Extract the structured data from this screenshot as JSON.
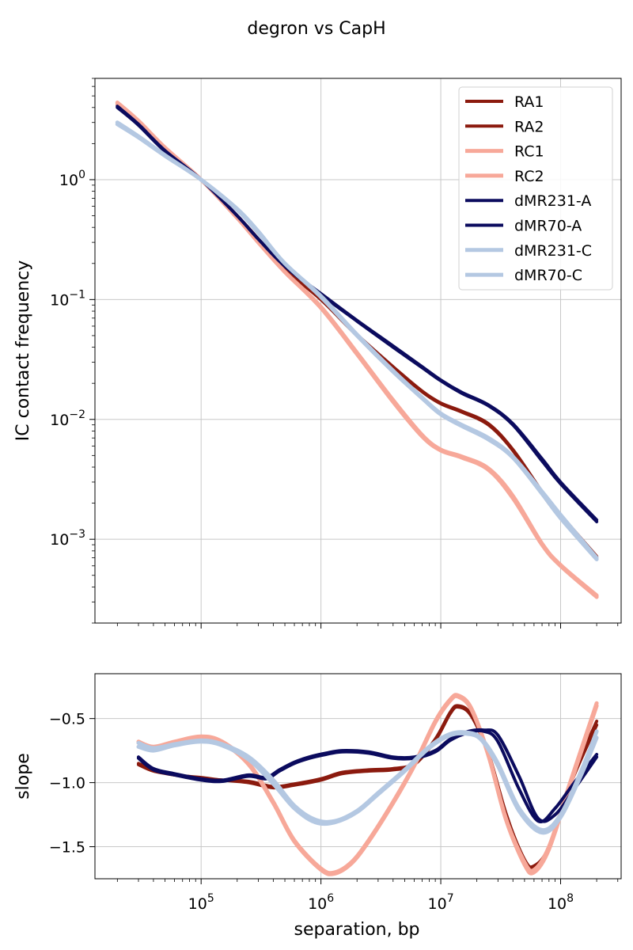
{
  "title": "degron vs CapH",
  "colors": {
    "RA": "#8b1a0e",
    "RC": "#f7a899",
    "dMR_A": "#0b0b5e",
    "dMR_C": "#b4c8e2"
  },
  "chart_data": [
    {
      "type": "line",
      "panel": "top",
      "title": "degron vs CapH",
      "xlabel": "",
      "ylabel": "IC contact frequency",
      "xscale": "log",
      "yscale": "log",
      "xlim": [
        13000,
        320000000
      ],
      "ylim": [
        0.0002,
        7
      ],
      "grid": true,
      "legend_position": "top-right",
      "y_ticks": [
        {
          "value": 1,
          "base": "10",
          "exp": "0"
        },
        {
          "value": 0.1,
          "base": "10",
          "exp": "−1"
        },
        {
          "value": 0.01,
          "base": "10",
          "exp": "−2"
        },
        {
          "value": 0.001,
          "base": "10",
          "exp": "−3"
        }
      ],
      "legend": [
        "RA1",
        "RA2",
        "RC1",
        "RC2",
        "dMR231-A",
        "dMR70-A",
        "dMR231-C",
        "dMR70-C"
      ],
      "series": [
        {
          "name": "RA1",
          "color": "#8b1a0e",
          "x": [
            20000,
            30000,
            50000,
            100000,
            200000,
            300000,
            500000,
            1000000,
            2000000,
            4000000,
            7000000,
            10000000,
            15000000,
            25000000,
            40000000,
            70000000,
            100000000,
            200000000
          ],
          "y": [
            4.3,
            3.0,
            1.8,
            1.0,
            0.5,
            0.32,
            0.18,
            0.1,
            0.05,
            0.027,
            0.017,
            0.0135,
            0.0115,
            0.009,
            0.0055,
            0.0024,
            0.0015,
            0.0007
          ]
        },
        {
          "name": "RA2",
          "color": "#8b1a0e",
          "x": [
            20000,
            30000,
            50000,
            100000,
            200000,
            300000,
            500000,
            1000000,
            2000000,
            4000000,
            7000000,
            10000000,
            15000000,
            25000000,
            40000000,
            70000000,
            100000000,
            200000000
          ],
          "y": [
            4.2,
            2.95,
            1.78,
            1.0,
            0.5,
            0.32,
            0.18,
            0.1,
            0.051,
            0.0275,
            0.0172,
            0.0137,
            0.0117,
            0.0092,
            0.0056,
            0.0025,
            0.0016,
            0.00072
          ]
        },
        {
          "name": "RC1",
          "color": "#f7a899",
          "x": [
            20000,
            30000,
            50000,
            100000,
            200000,
            300000,
            500000,
            1000000,
            2000000,
            4000000,
            7000000,
            10000000,
            15000000,
            25000000,
            40000000,
            70000000,
            100000000,
            200000000
          ],
          "y": [
            4.4,
            3.1,
            1.85,
            1.0,
            0.48,
            0.3,
            0.17,
            0.085,
            0.035,
            0.014,
            0.0072,
            0.0055,
            0.0048,
            0.0038,
            0.0022,
            0.0009,
            0.0006,
            0.00033
          ]
        },
        {
          "name": "RC2",
          "color": "#f7a899",
          "x": [
            20000,
            30000,
            50000,
            100000,
            200000,
            300000,
            500000,
            1000000,
            2000000,
            4000000,
            7000000,
            10000000,
            15000000,
            25000000,
            40000000,
            70000000,
            100000000,
            200000000
          ],
          "y": [
            4.3,
            3.05,
            1.82,
            1.0,
            0.48,
            0.3,
            0.17,
            0.087,
            0.036,
            0.0145,
            0.0074,
            0.0056,
            0.0049,
            0.0039,
            0.0023,
            0.00092,
            0.00061,
            0.00034
          ]
        },
        {
          "name": "dMR231-A",
          "color": "#0b0b5e",
          "x": [
            20000,
            30000,
            50000,
            100000,
            200000,
            300000,
            500000,
            1000000,
            2000000,
            4000000,
            7000000,
            10000000,
            15000000,
            25000000,
            40000000,
            70000000,
            100000000,
            200000000
          ],
          "y": [
            4.1,
            2.9,
            1.75,
            1.0,
            0.5,
            0.32,
            0.19,
            0.11,
            0.066,
            0.04,
            0.027,
            0.021,
            0.0165,
            0.013,
            0.009,
            0.0045,
            0.0029,
            0.0014
          ]
        },
        {
          "name": "dMR70-A",
          "color": "#0b0b5e",
          "x": [
            20000,
            30000,
            50000,
            100000,
            200000,
            300000,
            500000,
            1000000,
            2000000,
            4000000,
            7000000,
            10000000,
            15000000,
            25000000,
            40000000,
            70000000,
            100000000,
            200000000
          ],
          "y": [
            4.0,
            2.85,
            1.72,
            1.0,
            0.5,
            0.32,
            0.19,
            0.112,
            0.067,
            0.041,
            0.0275,
            0.0213,
            0.0168,
            0.0132,
            0.0092,
            0.0047,
            0.003,
            0.00145
          ]
        },
        {
          "name": "dMR231-C",
          "color": "#b4c8e2",
          "x": [
            20000,
            30000,
            50000,
            100000,
            200000,
            300000,
            500000,
            1000000,
            2000000,
            4000000,
            7000000,
            10000000,
            15000000,
            25000000,
            40000000,
            70000000,
            100000000,
            200000000
          ],
          "y": [
            3.0,
            2.3,
            1.6,
            1.0,
            0.56,
            0.36,
            0.2,
            0.105,
            0.05,
            0.025,
            0.015,
            0.011,
            0.0088,
            0.0068,
            0.0048,
            0.0024,
            0.0015,
            0.00068
          ]
        },
        {
          "name": "dMR70-C",
          "color": "#b4c8e2",
          "x": [
            20000,
            30000,
            50000,
            100000,
            200000,
            300000,
            500000,
            1000000,
            2000000,
            4000000,
            7000000,
            10000000,
            15000000,
            25000000,
            40000000,
            70000000,
            100000000,
            200000000
          ],
          "y": [
            2.9,
            2.25,
            1.58,
            1.0,
            0.57,
            0.37,
            0.2,
            0.107,
            0.051,
            0.0255,
            0.0152,
            0.0112,
            0.009,
            0.007,
            0.0049,
            0.0025,
            0.0016,
            0.0007
          ]
        }
      ]
    },
    {
      "type": "line",
      "panel": "bottom",
      "xlabel": "separation, bp",
      "ylabel": "slope",
      "xscale": "log",
      "yscale": "linear",
      "xlim": [
        13000,
        320000000
      ],
      "ylim": [
        -1.75,
        -0.15
      ],
      "grid": true,
      "y_ticks": [
        {
          "value": -0.5,
          "label": "−0.5"
        },
        {
          "value": -1.0,
          "label": "−1.0"
        },
        {
          "value": -1.5,
          "label": "−1.5"
        }
      ],
      "x_ticks": [
        {
          "value": 100000,
          "base": "10",
          "exp": "5"
        },
        {
          "value": 1000000,
          "base": "10",
          "exp": "6"
        },
        {
          "value": 10000000,
          "base": "10",
          "exp": "7"
        },
        {
          "value": 100000000,
          "base": "10",
          "exp": "8"
        }
      ],
      "series": [
        {
          "name": "RA1",
          "color": "#8b1a0e",
          "x": [
            30000,
            40000,
            60000,
            100000,
            150000,
            250000,
            400000,
            600000,
            1000000,
            1500000,
            2500000,
            4000000,
            6000000,
            9000000,
            12000000,
            14000000,
            18000000,
            25000000,
            35000000,
            50000000,
            60000000,
            80000000,
            120000000,
            200000000
          ],
          "y": [
            -0.86,
            -0.91,
            -0.94,
            -0.97,
            -0.98,
            -1.0,
            -1.04,
            -1.02,
            -0.98,
            -0.93,
            -0.91,
            -0.9,
            -0.86,
            -0.67,
            -0.46,
            -0.41,
            -0.48,
            -0.78,
            -1.25,
            -1.6,
            -1.65,
            -1.5,
            -1.0,
            -0.52
          ]
        },
        {
          "name": "RA2",
          "color": "#8b1a0e",
          "x": [
            30000,
            40000,
            60000,
            100000,
            150000,
            250000,
            400000,
            600000,
            1000000,
            1500000,
            2500000,
            4000000,
            6000000,
            9000000,
            12000000,
            14000000,
            18000000,
            25000000,
            35000000,
            50000000,
            60000000,
            80000000,
            120000000,
            200000000
          ],
          "y": [
            -0.85,
            -0.9,
            -0.94,
            -0.96,
            -0.98,
            -0.99,
            -1.03,
            -1.01,
            -0.97,
            -0.92,
            -0.9,
            -0.89,
            -0.85,
            -0.66,
            -0.45,
            -0.4,
            -0.47,
            -0.77,
            -1.24,
            -1.62,
            -1.67,
            -1.52,
            -1.02,
            -0.55
          ]
        },
        {
          "name": "RC1",
          "color": "#f7a899",
          "x": [
            30000,
            40000,
            60000,
            100000,
            150000,
            250000,
            400000,
            600000,
            1000000,
            1300000,
            1800000,
            2500000,
            4000000,
            6000000,
            9000000,
            12000000,
            14000000,
            18000000,
            25000000,
            35000000,
            50000000,
            60000000,
            80000000,
            120000000,
            200000000
          ],
          "y": [
            -0.68,
            -0.72,
            -0.68,
            -0.64,
            -0.68,
            -0.85,
            -1.15,
            -1.45,
            -1.67,
            -1.7,
            -1.62,
            -1.45,
            -1.15,
            -0.86,
            -0.52,
            -0.35,
            -0.32,
            -0.42,
            -0.78,
            -1.28,
            -1.62,
            -1.68,
            -1.5,
            -1.0,
            -0.38
          ]
        },
        {
          "name": "RC2",
          "color": "#f7a899",
          "x": [
            30000,
            40000,
            60000,
            100000,
            150000,
            250000,
            400000,
            600000,
            1000000,
            1300000,
            1800000,
            2500000,
            4000000,
            6000000,
            9000000,
            12000000,
            14000000,
            18000000,
            25000000,
            35000000,
            50000000,
            60000000,
            80000000,
            120000000,
            200000000
          ],
          "y": [
            -0.69,
            -0.73,
            -0.69,
            -0.65,
            -0.69,
            -0.86,
            -1.16,
            -1.46,
            -1.68,
            -1.71,
            -1.63,
            -1.46,
            -1.16,
            -0.87,
            -0.53,
            -0.36,
            -0.33,
            -0.43,
            -0.79,
            -1.29,
            -1.64,
            -1.7,
            -1.52,
            -1.02,
            -0.4
          ]
        },
        {
          "name": "dMR231-A",
          "color": "#0b0b5e",
          "x": [
            30000,
            40000,
            60000,
            100000,
            150000,
            250000,
            350000,
            450000,
            600000,
            800000,
            1100000,
            1500000,
            2500000,
            4000000,
            6000000,
            9000000,
            12000000,
            17000000,
            23000000,
            30000000,
            45000000,
            65000000,
            90000000,
            130000000,
            200000000
          ],
          "y": [
            -0.8,
            -0.89,
            -0.93,
            -0.97,
            -0.98,
            -0.94,
            -0.96,
            -0.9,
            -0.84,
            -0.8,
            -0.77,
            -0.75,
            -0.76,
            -0.8,
            -0.8,
            -0.75,
            -0.66,
            -0.6,
            -0.59,
            -0.63,
            -0.95,
            -1.28,
            -1.25,
            -1.05,
            -0.8
          ]
        },
        {
          "name": "dMR70-A",
          "color": "#0b0b5e",
          "x": [
            30000,
            40000,
            60000,
            100000,
            150000,
            250000,
            350000,
            450000,
            600000,
            800000,
            1100000,
            1500000,
            2500000,
            4000000,
            6000000,
            9000000,
            12000000,
            17000000,
            23000000,
            30000000,
            45000000,
            65000000,
            90000000,
            130000000,
            200000000
          ],
          "y": [
            -0.81,
            -0.9,
            -0.94,
            -0.98,
            -0.99,
            -0.95,
            -0.97,
            -0.91,
            -0.85,
            -0.81,
            -0.78,
            -0.76,
            -0.77,
            -0.81,
            -0.81,
            -0.76,
            -0.67,
            -0.61,
            -0.6,
            -0.68,
            -1.05,
            -1.3,
            -1.2,
            -1.0,
            -0.78
          ]
        },
        {
          "name": "dMR231-C",
          "color": "#b4c8e2",
          "x": [
            30000,
            40000,
            60000,
            100000,
            150000,
            250000,
            400000,
            600000,
            900000,
            1300000,
            2000000,
            3000000,
            5000000,
            8000000,
            12000000,
            17000000,
            22000000,
            30000000,
            45000000,
            70000000,
            100000000,
            150000000,
            200000000
          ],
          "y": [
            -0.69,
            -0.73,
            -0.7,
            -0.67,
            -0.7,
            -0.8,
            -0.98,
            -1.18,
            -1.29,
            -1.3,
            -1.22,
            -1.08,
            -0.9,
            -0.72,
            -0.62,
            -0.61,
            -0.66,
            -0.85,
            -1.2,
            -1.37,
            -1.25,
            -0.9,
            -0.6
          ]
        },
        {
          "name": "dMR70-C",
          "color": "#b4c8e2",
          "x": [
            30000,
            40000,
            60000,
            100000,
            150000,
            250000,
            400000,
            600000,
            900000,
            1300000,
            2000000,
            3000000,
            5000000,
            8000000,
            12000000,
            17000000,
            22000000,
            30000000,
            45000000,
            70000000,
            100000000,
            150000000,
            200000000
          ],
          "y": [
            -0.72,
            -0.75,
            -0.71,
            -0.68,
            -0.71,
            -0.82,
            -1.01,
            -1.2,
            -1.31,
            -1.31,
            -1.23,
            -1.09,
            -0.91,
            -0.73,
            -0.63,
            -0.62,
            -0.67,
            -0.87,
            -1.22,
            -1.39,
            -1.27,
            -0.93,
            -0.65
          ]
        }
      ]
    }
  ]
}
